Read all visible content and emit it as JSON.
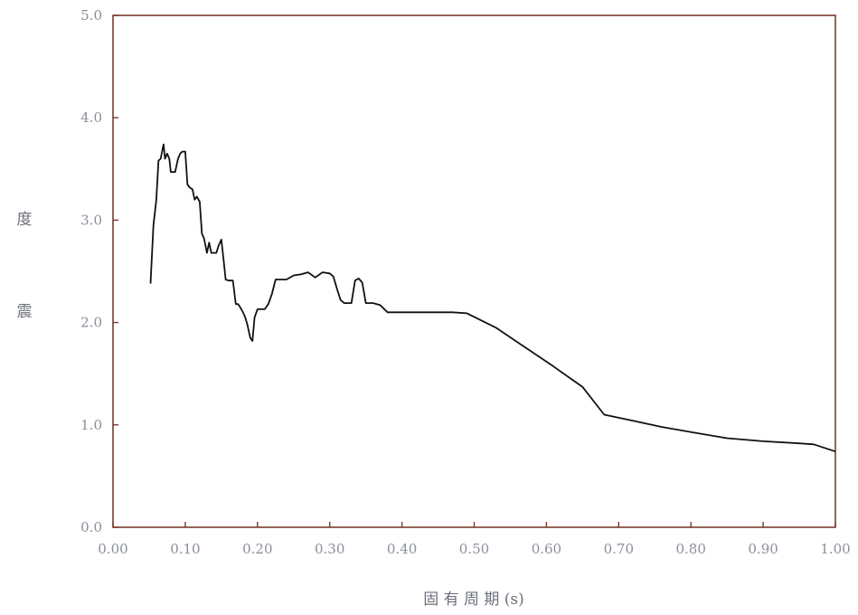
{
  "chart_data": {
    "type": "line",
    "title": "",
    "xlabel": "固 有 周 期 (s)",
    "ylabel": [
      "度",
      "震"
    ],
    "xlim": [
      0,
      1.0
    ],
    "ylim": [
      0,
      5.0
    ],
    "x_ticks": [
      0.0,
      0.1,
      0.2,
      0.3,
      0.4,
      0.5,
      0.6,
      0.7,
      0.8,
      0.9,
      1.0
    ],
    "x_tick_labels": [
      "0.00",
      "0.10",
      "0.20",
      "0.30",
      "0.40",
      "0.50",
      "0.60",
      "0.70",
      "0.80",
      "0.90",
      "1.00"
    ],
    "y_ticks": [
      0.0,
      1.0,
      2.0,
      3.0,
      4.0,
      5.0
    ],
    "y_tick_labels": [
      "0.0",
      "1.0",
      "2.0",
      "3.0",
      "4.0",
      "5.0"
    ],
    "grid": false,
    "legend": "none",
    "colors": {
      "line": "#111111",
      "frame": "#7a3b2e",
      "tick_text": "#8a8f9c"
    },
    "series": [
      {
        "x": [
          0.052,
          0.056,
          0.06,
          0.063,
          0.066,
          0.07,
          0.072,
          0.075,
          0.078,
          0.08,
          0.083,
          0.086,
          0.09,
          0.093,
          0.096,
          0.1,
          0.103,
          0.106,
          0.11,
          0.113,
          0.116,
          0.12,
          0.123,
          0.126,
          0.13,
          0.133,
          0.136,
          0.14,
          0.143,
          0.146,
          0.15,
          0.153,
          0.156,
          0.16,
          0.163,
          0.166,
          0.17,
          0.173,
          0.176,
          0.18,
          0.183,
          0.186,
          0.19,
          0.193,
          0.196,
          0.2,
          0.205,
          0.21,
          0.215,
          0.22,
          0.225,
          0.23,
          0.24,
          0.25,
          0.26,
          0.27,
          0.28,
          0.29,
          0.3,
          0.305,
          0.31,
          0.315,
          0.32,
          0.33,
          0.335,
          0.34,
          0.345,
          0.35,
          0.36,
          0.37,
          0.38,
          0.4,
          0.42,
          0.45,
          0.47,
          0.49,
          0.53,
          0.57,
          0.61,
          0.65,
          0.68,
          0.72,
          0.76,
          0.8,
          0.85,
          0.9,
          0.95,
          0.97,
          1.0
        ],
        "y": [
          2.38,
          2.95,
          3.2,
          3.58,
          3.6,
          3.74,
          3.6,
          3.65,
          3.6,
          3.47,
          3.47,
          3.47,
          3.6,
          3.65,
          3.67,
          3.67,
          3.35,
          3.32,
          3.3,
          3.2,
          3.23,
          3.18,
          2.87,
          2.82,
          2.68,
          2.78,
          2.68,
          2.68,
          2.68,
          2.75,
          2.81,
          2.62,
          2.42,
          2.41,
          2.41,
          2.41,
          2.18,
          2.18,
          2.15,
          2.1,
          2.05,
          1.98,
          1.85,
          1.82,
          2.05,
          2.13,
          2.13,
          2.13,
          2.18,
          2.28,
          2.42,
          2.42,
          2.42,
          2.46,
          2.47,
          2.49,
          2.44,
          2.49,
          2.48,
          2.45,
          2.33,
          2.22,
          2.19,
          2.19,
          2.41,
          2.43,
          2.39,
          2.19,
          2.19,
          2.17,
          2.1,
          2.1,
          2.1,
          2.1,
          2.1,
          2.09,
          1.95,
          1.76,
          1.57,
          1.37,
          1.1,
          1.04,
          0.98,
          0.93,
          0.87,
          0.84,
          0.82,
          0.81,
          0.74
        ]
      }
    ]
  }
}
